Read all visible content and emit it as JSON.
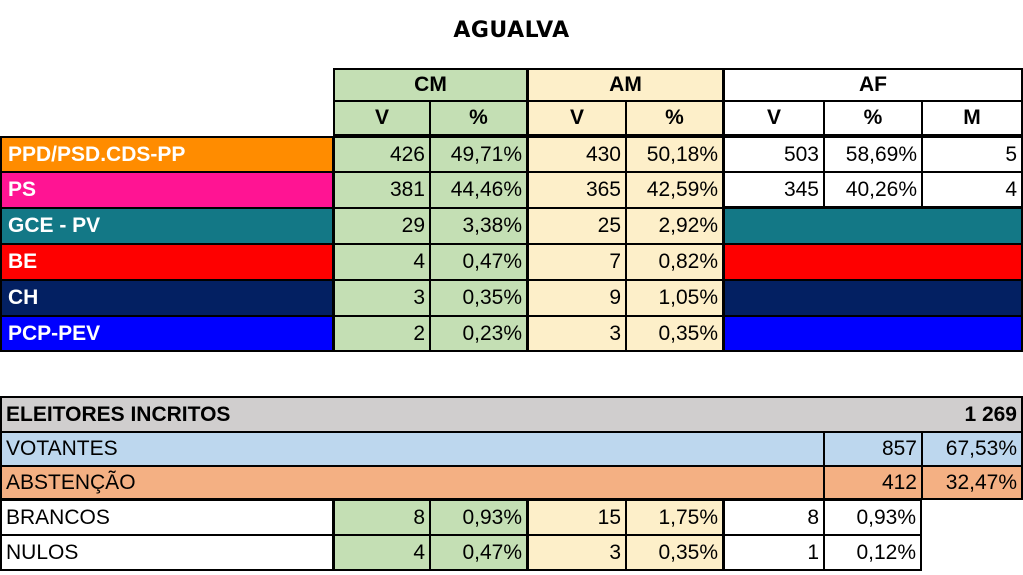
{
  "title": "AGUALVA",
  "groups": {
    "cm": "CM",
    "am": "AM",
    "af": "AF"
  },
  "subheaders": {
    "v": "V",
    "pct": "%",
    "m": "M"
  },
  "parties": [
    {
      "name": "PPD/PSD.CDS-PP",
      "color": "#ff8c00",
      "cm_v": "426",
      "cm_pct": "49,71%",
      "am_v": "430",
      "am_pct": "50,18%",
      "af_v": "503",
      "af_pct": "58,69%",
      "af_m": "5"
    },
    {
      "name": "PS",
      "color": "#ff1493",
      "cm_v": "381",
      "cm_pct": "44,46%",
      "am_v": "365",
      "am_pct": "42,59%",
      "af_v": "345",
      "af_pct": "40,26%",
      "af_m": "4"
    },
    {
      "name": "GCE - PV",
      "color": "#137886",
      "cm_v": "29",
      "cm_pct": "3,38%",
      "am_v": "25",
      "am_pct": "2,92%"
    },
    {
      "name": "BE",
      "color": "#fe0000",
      "cm_v": "4",
      "cm_pct": "0,47%",
      "am_v": "7",
      "am_pct": "0,82%"
    },
    {
      "name": "CH",
      "color": "#032062",
      "cm_v": "3",
      "cm_pct": "0,35%",
      "am_v": "9",
      "am_pct": "1,05%"
    },
    {
      "name": "PCP-PEV",
      "color": "#0000ff",
      "cm_v": "2",
      "cm_pct": "0,23%",
      "am_v": "3",
      "am_pct": "0,35%"
    }
  ],
  "totals": {
    "eleitores": {
      "label": "ELEITORES INCRITOS",
      "value": "1 269",
      "color": "#d0cece"
    },
    "votantes": {
      "label": "VOTANTES",
      "value": "857",
      "pct": "67,53%",
      "color": "#bdd7ee"
    },
    "abstencao": {
      "label": "ABSTENÇÃO",
      "value": "412",
      "pct": "32,47%",
      "color": "#f4b083"
    },
    "brancos": {
      "label": "BRANCOS",
      "cm_v": "8",
      "cm_pct": "0,93%",
      "am_v": "15",
      "am_pct": "1,75%",
      "af_v": "8",
      "af_pct": "0,93%"
    },
    "nulos": {
      "label": "NULOS",
      "cm_v": "4",
      "cm_pct": "0,47%",
      "am_v": "3",
      "am_pct": "0,35%",
      "af_v": "1",
      "af_pct": "0,12%"
    }
  }
}
